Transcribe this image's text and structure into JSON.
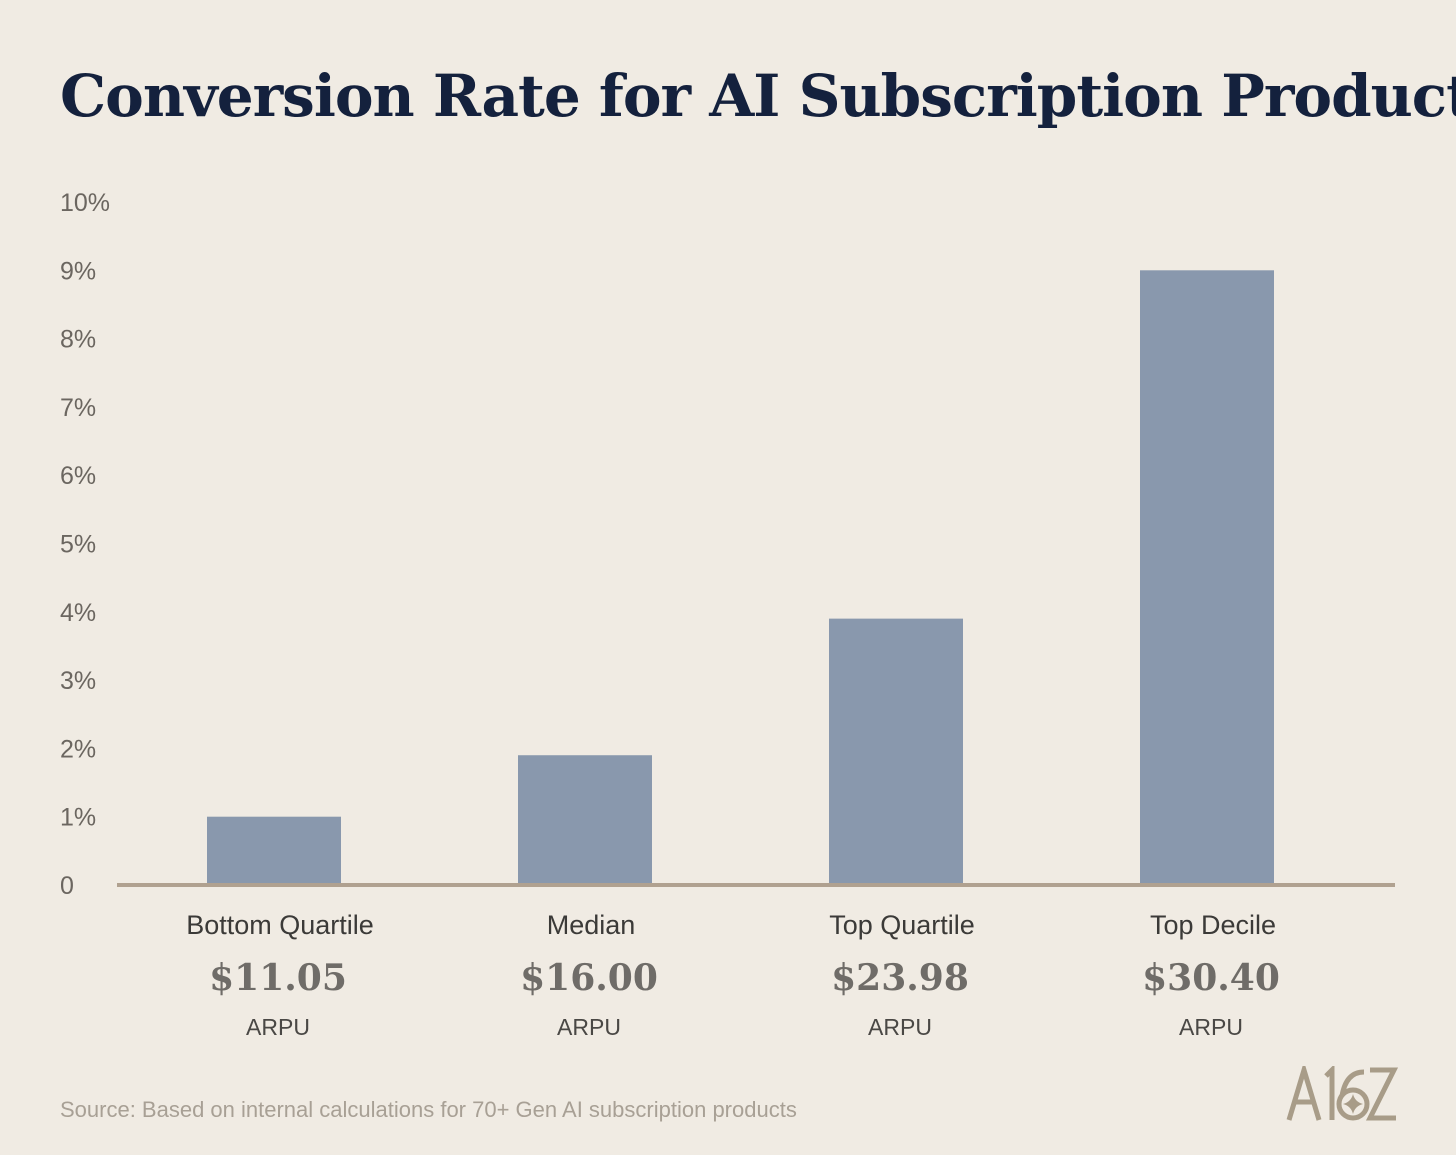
{
  "chart_data": {
    "type": "bar",
    "title": "Conversion Rate for AI Subscription Products",
    "categories": [
      "Bottom Quartile",
      "Median",
      "Top Quartile",
      "Top Decile"
    ],
    "arpu_values": [
      "$11.05",
      "$16.00",
      "$23.98",
      "$30.40"
    ],
    "arpu_label": "ARPU",
    "values": [
      1.0,
      1.9,
      3.9,
      9.0
    ],
    "ylim": [
      0,
      10
    ],
    "yticks": [
      "0",
      "1%",
      "2%",
      "3%",
      "4%",
      "5%",
      "6%",
      "7%",
      "8%",
      "9%",
      "10%"
    ],
    "grid": false,
    "xlabel": "",
    "ylabel": "",
    "colors": {
      "bar": "#8998ad",
      "axis": "#b0a190",
      "title": "#14213d",
      "background": "#f0ebe3"
    }
  },
  "source": "Source: Based on internal calculations for 70+ Gen AI subscription products",
  "logo": "A16Z"
}
